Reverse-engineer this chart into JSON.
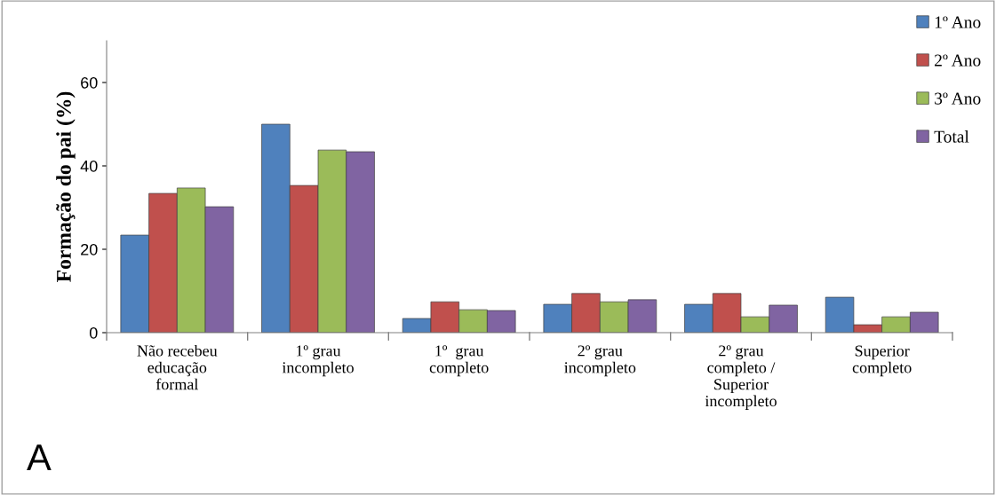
{
  "chart_data": {
    "type": "bar",
    "ylabel": "Formação do pai (%)",
    "categories": [
      "Não recebeu\neducação\nformal",
      "1º grau\nincompleto",
      "1º  grau\ncompleto",
      "2º grau\nincompleto",
      "2º grau\ncompleto /\nSuperior\nincompleto",
      "Superior\ncompleto"
    ],
    "series": [
      {
        "name": "1º Ano",
        "color": "#4f81bd",
        "values": [
          23.4,
          50,
          3.4,
          6.8,
          6.8,
          8.5
        ]
      },
      {
        "name": "2º Ano",
        "color": "#c0504d",
        "values": [
          33.4,
          35.3,
          7.4,
          9.4,
          9.4,
          1.9
        ]
      },
      {
        "name": "3º Ano",
        "color": "#9bbb59",
        "values": [
          34.7,
          43.8,
          5.5,
          7.4,
          3.8,
          3.8
        ]
      },
      {
        "name": "Total",
        "color": "#8064a2",
        "values": [
          30.2,
          43.4,
          5.3,
          7.9,
          6.6,
          4.9
        ]
      }
    ],
    "ylim": [
      0,
      70
    ],
    "yticks": [
      0,
      20,
      40,
      60
    ],
    "grid": false,
    "legend": "top right",
    "annotations": [
      "A"
    ]
  }
}
